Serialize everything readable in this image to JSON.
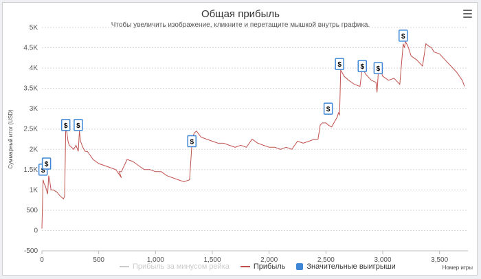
{
  "chart_data": {
    "type": "line",
    "title": "Общая прибыль",
    "subtitle": "Чтобы увеличить изображение, кликните и перетащите мышкой внутрь графика.",
    "ylabel": "Суммарный итог (USD)",
    "xlabel": "Номер игры",
    "ylim": [
      -500,
      5000
    ],
    "xlim": [
      0,
      3750
    ],
    "yticks": [
      -500,
      0,
      500,
      1000,
      1500,
      2000,
      2500,
      3000,
      3500,
      4000,
      4500,
      5000
    ],
    "ytick_labels": [
      "-500",
      "0",
      "500",
      "1K",
      "1.5K",
      "2K",
      "2.5K",
      "3K",
      "3.5K",
      "4K",
      "4.5K",
      "5K"
    ],
    "xticks": [
      0,
      500,
      1000,
      1500,
      2000,
      2500,
      3000,
      3500
    ],
    "xtick_labels": [
      "0",
      "500",
      "1,000",
      "1,500",
      "2,000",
      "2,500",
      "3,000",
      "3,500"
    ],
    "grid": true,
    "legend_position": "bottom",
    "series": [
      {
        "name": "Прибыль за минусом рейка",
        "color": "#cccccc",
        "hidden": true,
        "values": []
      },
      {
        "name": "Прибыль",
        "color": "#c0504d",
        "x": [
          0,
          10,
          20,
          30,
          40,
          50,
          60,
          70,
          80,
          100,
          130,
          160,
          190,
          200,
          210,
          220,
          230,
          240,
          260,
          280,
          300,
          320,
          330,
          340,
          360,
          380,
          400,
          450,
          500,
          550,
          600,
          650,
          700,
          680,
          700,
          750,
          800,
          850,
          900,
          950,
          1000,
          1050,
          1100,
          1150,
          1200,
          1250,
          1300,
          1320,
          1330,
          1340,
          1360,
          1400,
          1450,
          1500,
          1550,
          1600,
          1650,
          1700,
          1750,
          1800,
          1850,
          1900,
          1950,
          2000,
          2050,
          2100,
          2150,
          2200,
          2250,
          2300,
          2350,
          2400,
          2430,
          2450,
          2470,
          2500,
          2520,
          2550,
          2580,
          2600,
          2610,
          2620,
          2630,
          2640,
          2660,
          2700,
          2750,
          2800,
          2820,
          2830,
          2850,
          2900,
          2940,
          2950,
          2960,
          2980,
          3000,
          3050,
          3100,
          3150,
          3180,
          3190,
          3200,
          3220,
          3250,
          3300,
          3350,
          3380,
          3400,
          3430,
          3450,
          3500,
          3550,
          3600,
          3650,
          3700,
          3720
        ],
        "values": [
          50,
          1250,
          1150,
          1100,
          1000,
          900,
          1350,
          1200,
          1000,
          1000,
          950,
          850,
          780,
          850,
          2550,
          2400,
          2200,
          2100,
          2050,
          2000,
          2100,
          1950,
          2450,
          2200,
          2050,
          1950,
          1950,
          1750,
          1650,
          1600,
          1550,
          1500,
          1300,
          1450,
          1450,
          1750,
          1700,
          1600,
          1500,
          1500,
          1450,
          1450,
          1350,
          1300,
          1250,
          1200,
          1250,
          2100,
          2300,
          2400,
          2450,
          2300,
          2250,
          2200,
          2150,
          2150,
          2100,
          2050,
          2100,
          2050,
          2250,
          2150,
          2100,
          2050,
          2050,
          2000,
          2050,
          2000,
          2200,
          2150,
          2200,
          2250,
          2250,
          2600,
          2650,
          2650,
          2600,
          2550,
          2700,
          2800,
          2900,
          2850,
          3950,
          3900,
          3800,
          3700,
          3600,
          3550,
          4000,
          3950,
          3850,
          3700,
          3650,
          3400,
          3850,
          3950,
          3800,
          3700,
          3750,
          3600,
          4600,
          4500,
          4650,
          4550,
          4300,
          4200,
          4050,
          4600,
          4550,
          4500,
          4400,
          4350,
          4200,
          4050,
          3900,
          3700,
          3550
        ]
      },
      {
        "name": "Значительные выигрыши",
        "color": "#3f86d6",
        "type": "marker",
        "marker_label": "$",
        "points": [
          {
            "x": 10,
            "y": 1500
          },
          {
            "x": 40,
            "y": 1650
          },
          {
            "x": 210,
            "y": 2600
          },
          {
            "x": 320,
            "y": 2600
          },
          {
            "x": 1320,
            "y": 2200
          },
          {
            "x": 2520,
            "y": 3000
          },
          {
            "x": 2620,
            "y": 4100
          },
          {
            "x": 2820,
            "y": 4050
          },
          {
            "x": 2960,
            "y": 4000
          },
          {
            "x": 3180,
            "y": 4800
          }
        ]
      }
    ]
  }
}
